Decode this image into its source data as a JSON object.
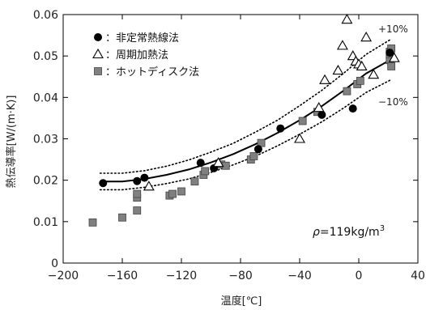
{
  "chart_data": {
    "type": "scatter",
    "xlabel": "温度[℃]",
    "ylabel": "熱伝導率[W/(m·K)]",
    "xlim": [
      -200,
      40
    ],
    "ylim": [
      0,
      0.06
    ],
    "x_ticks": [
      -200,
      -160,
      -120,
      -80,
      -40,
      0,
      40
    ],
    "x_tick_labels": [
      "−200",
      "−160",
      "−120",
      "−80",
      "−40",
      "0",
      "40"
    ],
    "y_ticks": [
      0,
      0.01,
      0.02,
      0.03,
      0.04,
      0.05,
      0.06
    ],
    "y_tick_labels": [
      "0",
      "0.01",
      "0.02",
      "0.03",
      "0.04",
      "0.05",
      "0.06"
    ],
    "grid": false,
    "legend_position": "top-left",
    "series": [
      {
        "name": "非定常熱線法",
        "marker": "filled-circle",
        "color": "#000000",
        "points": [
          [
            -173,
            0.0193
          ],
          [
            -150,
            0.0198
          ],
          [
            -145,
            0.0206
          ],
          [
            -107,
            0.0242
          ],
          [
            -98,
            0.0229
          ],
          [
            -68,
            0.0275
          ],
          [
            -53,
            0.0325
          ],
          [
            -25,
            0.0358
          ],
          [
            -4,
            0.0373
          ],
          [
            21,
            0.0508
          ]
        ]
      },
      {
        "name": "周期加熱法",
        "marker": "open-triangle",
        "color": "#000000",
        "points": [
          [
            -142,
            0.0185
          ],
          [
            -95,
            0.0242
          ],
          [
            -40,
            0.03
          ],
          [
            -27,
            0.0375
          ],
          [
            -23,
            0.0442
          ],
          [
            -14,
            0.0465
          ],
          [
            -11,
            0.0525
          ],
          [
            -8,
            0.0588
          ],
          [
            -4,
            0.05
          ],
          [
            -2,
            0.0487
          ],
          [
            0,
            0.048
          ],
          [
            2,
            0.0475
          ],
          [
            5,
            0.0545
          ],
          [
            10,
            0.0455
          ],
          [
            24,
            0.0495
          ]
        ]
      },
      {
        "name": "ホットディスク法",
        "marker": "filled-square",
        "color": "#808080",
        "points": [
          [
            -180,
            0.0098
          ],
          [
            -160,
            0.011
          ],
          [
            -150,
            0.0127
          ],
          [
            -150,
            0.0158
          ],
          [
            -150,
            0.0167
          ],
          [
            -128,
            0.0163
          ],
          [
            -126,
            0.0167
          ],
          [
            -120,
            0.0173
          ],
          [
            -111,
            0.0197
          ],
          [
            -105,
            0.0213
          ],
          [
            -104,
            0.0222
          ],
          [
            -93,
            0.0238
          ],
          [
            -90,
            0.0235
          ],
          [
            -73,
            0.025
          ],
          [
            -71,
            0.0258
          ],
          [
            -66,
            0.029
          ],
          [
            -38,
            0.0343
          ],
          [
            -28,
            0.0365
          ],
          [
            -8,
            0.0415
          ],
          [
            -1,
            0.0432
          ],
          [
            1,
            0.044
          ],
          [
            21,
            0.049
          ],
          [
            21,
            0.0505
          ],
          [
            21,
            0.051
          ],
          [
            22,
            0.0518
          ],
          [
            22,
            0.0475
          ]
        ]
      }
    ],
    "fit_curve": {
      "style": "solid",
      "points": [
        [
          -175,
          0.0197
        ],
        [
          -160,
          0.0197
        ],
        [
          -145,
          0.0203
        ],
        [
          -130,
          0.0213
        ],
        [
          -115,
          0.0226
        ],
        [
          -100,
          0.0243
        ],
        [
          -85,
          0.0263
        ],
        [
          -70,
          0.0287
        ],
        [
          -55,
          0.0314
        ],
        [
          -40,
          0.0345
        ],
        [
          -25,
          0.0379
        ],
        [
          -10,
          0.0417
        ],
        [
          5,
          0.0458
        ],
        [
          22,
          0.0492
        ]
      ]
    },
    "band_upper": {
      "label": "+10%",
      "style": "dotted",
      "points": [
        [
          -175,
          0.0217
        ],
        [
          -160,
          0.0217
        ],
        [
          -145,
          0.0223
        ],
        [
          -130,
          0.0234
        ],
        [
          -115,
          0.0249
        ],
        [
          -100,
          0.0268
        ],
        [
          -85,
          0.0289
        ],
        [
          -70,
          0.0316
        ],
        [
          -55,
          0.0345
        ],
        [
          -40,
          0.038
        ],
        [
          -25,
          0.0417
        ],
        [
          -10,
          0.0459
        ],
        [
          5,
          0.0504
        ],
        [
          22,
          0.0541
        ]
      ]
    },
    "band_lower": {
      "label": "−10%",
      "style": "dotted",
      "points": [
        [
          -175,
          0.0177
        ],
        [
          -160,
          0.0177
        ],
        [
          -145,
          0.0183
        ],
        [
          -130,
          0.0192
        ],
        [
          -115,
          0.0203
        ],
        [
          -100,
          0.0219
        ],
        [
          -85,
          0.0237
        ],
        [
          -70,
          0.0258
        ],
        [
          -55,
          0.0283
        ],
        [
          -40,
          0.0311
        ],
        [
          -25,
          0.0341
        ],
        [
          -10,
          0.0375
        ],
        [
          5,
          0.0412
        ],
        [
          22,
          0.0443
        ]
      ]
    },
    "annotations": {
      "upper_band_label": "+10%",
      "lower_band_label": "−10%",
      "density_symbol": "ρ",
      "density_value": "=119kg/m",
      "density_superscript": "3"
    }
  }
}
